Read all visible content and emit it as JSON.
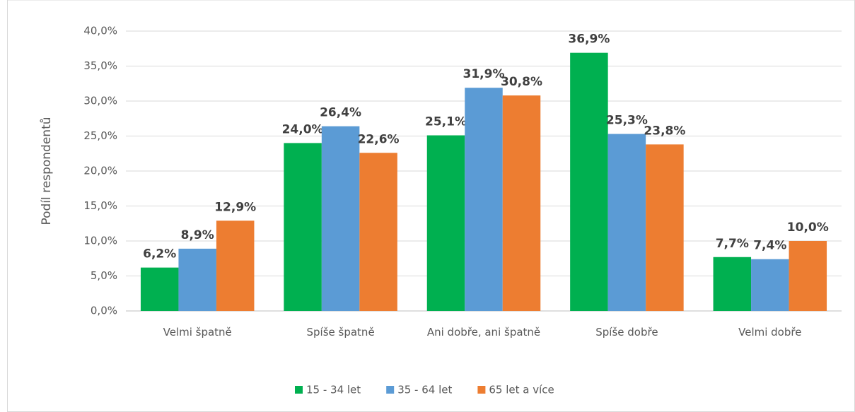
{
  "chart_data": {
    "type": "bar",
    "y_label": "Podíl respondentů",
    "categories": [
      "Velmi špatně",
      "Spíše špatně",
      "Ani dobře, ani špatně",
      "Spíše dobře",
      "Velmi dobře"
    ],
    "series": [
      {
        "name": "15 - 34 let",
        "color": "#00b050",
        "values": [
          6.2,
          24.0,
          25.1,
          36.9,
          7.7
        ],
        "value_labels": [
          "6,2%",
          "24,0%",
          "25,1%",
          "36,9%",
          "7,7%"
        ]
      },
      {
        "name": "35 - 64 let",
        "color": "#5b9bd5",
        "values": [
          8.9,
          26.4,
          31.9,
          25.3,
          7.4
        ],
        "value_labels": [
          "8,9%",
          "26,4%",
          "31,9%",
          "25,3%",
          "7,4%"
        ]
      },
      {
        "name": "65 let a více",
        "color": "#ed7d31",
        "values": [
          12.9,
          22.6,
          30.8,
          23.8,
          10.0
        ],
        "value_labels": [
          "12,9%",
          "22,6%",
          "30,8%",
          "23,8%",
          "10,0%"
        ]
      }
    ],
    "ylim": [
      0,
      40
    ],
    "yticks": [
      {
        "value": 0,
        "label": "0,0%"
      },
      {
        "value": 5,
        "label": "5,0%"
      },
      {
        "value": 10,
        "label": "10,0%"
      },
      {
        "value": 15,
        "label": "15,0%"
      },
      {
        "value": 20,
        "label": "20,0%"
      },
      {
        "value": 25,
        "label": "25,0%"
      },
      {
        "value": 30,
        "label": "30,0%"
      },
      {
        "value": 35,
        "label": "35,0%"
      },
      {
        "value": 40,
        "label": "40,0%"
      }
    ],
    "grid": true,
    "legend": "bottom"
  }
}
